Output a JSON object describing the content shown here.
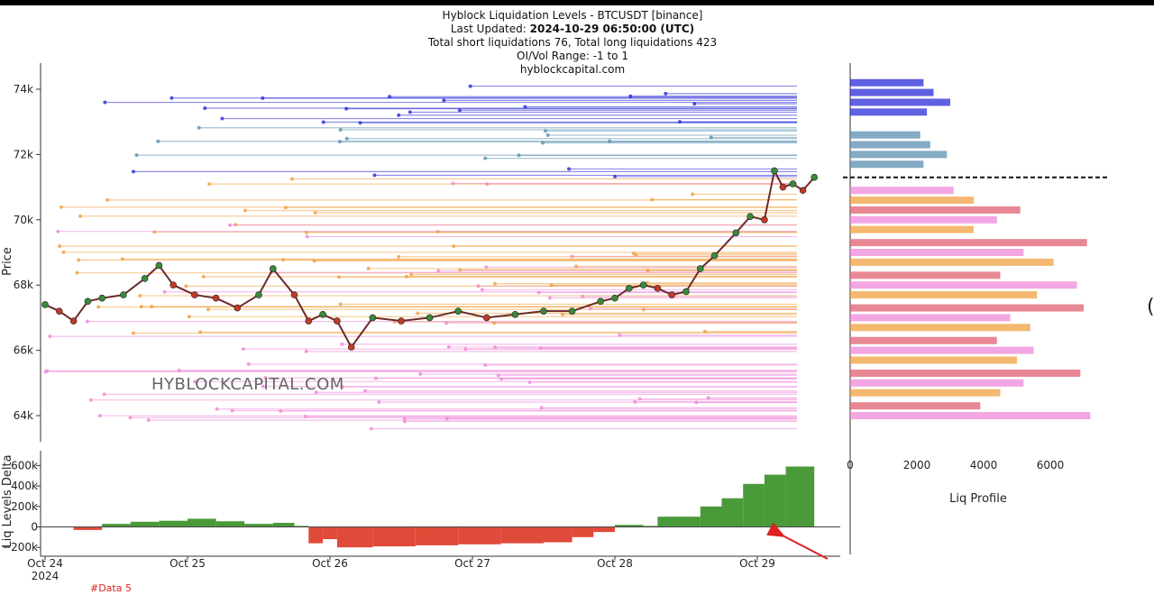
{
  "header": {
    "title": "Hyblock Liquidation Levels - BTCUSDT [binance]",
    "updated_label": "Last Updated:",
    "updated_value": "2024-10-29 06:50:00 (UTC)",
    "totals": "Total short liquidations 76, Total long liquidations 423",
    "range": "OI/Vol Range: -1 to 1",
    "site": "hyblockcapital.com"
  },
  "watermark": "HYBLOCKCAPITAL.COM",
  "footnote": "#Data 5",
  "edge_glyph": "(",
  "colors": {
    "short_liq": "#2b2bd9",
    "short_liq_light": "#5a8fb0",
    "long_liq_orange": "#f0a040",
    "long_liq_pink": "#ee88d8",
    "delta_pos": "#4a9a3a",
    "delta_neg": "#e04a38",
    "current_price_line": "#111111",
    "annotation_arrow": "#e02020"
  },
  "chart_data": [
    {
      "type": "line",
      "name": "price-panel",
      "ylabel": "Price",
      "ylim": [
        63200,
        74800
      ],
      "yticks": [
        64000,
        66000,
        68000,
        70000,
        72000,
        74000
      ],
      "ytick_labels": [
        "64k",
        "66k",
        "68k",
        "70k",
        "72k",
        "74k"
      ],
      "x_domain": [
        0,
        5.4
      ],
      "series": [
        {
          "name": "BTCUSDT price",
          "x": [
            0.0,
            0.1,
            0.2,
            0.3,
            0.4,
            0.55,
            0.7,
            0.8,
            0.9,
            1.05,
            1.2,
            1.35,
            1.5,
            1.6,
            1.75,
            1.85,
            1.95,
            2.05,
            2.15,
            2.3,
            2.5,
            2.7,
            2.9,
            3.1,
            3.3,
            3.5,
            3.7,
            3.9,
            4.0,
            4.1,
            4.2,
            4.3,
            4.4,
            4.5,
            4.6,
            4.7,
            4.85,
            4.95,
            5.05,
            5.12,
            5.18,
            5.25,
            5.32,
            5.4
          ],
          "values": [
            67400,
            67200,
            66900,
            67500,
            67600,
            67700,
            68200,
            68600,
            68000,
            67700,
            67600,
            67300,
            67700,
            68500,
            67700,
            66900,
            67100,
            66900,
            66100,
            67000,
            66900,
            67000,
            67200,
            67000,
            67100,
            67200,
            67200,
            67500,
            67600,
            67900,
            68000,
            67900,
            67700,
            67800,
            68500,
            68900,
            69600,
            70100,
            70000,
            71500,
            71000,
            71100,
            70900,
            71300
          ]
        }
      ],
      "current_price": 71300
    },
    {
      "type": "bar",
      "name": "liq-levels-delta",
      "ylabel": "Liq Levels Delta",
      "ylim": [
        -260000,
        700000
      ],
      "yticks": [
        -200000,
        0,
        200000,
        400000,
        600000
      ],
      "ytick_labels": [
        "−200k",
        "0",
        "200k",
        "400k",
        "600k"
      ],
      "xticks": [
        0,
        1,
        2,
        3,
        4,
        5
      ],
      "xtick_labels": [
        "Oct 24",
        "Oct 25",
        "Oct 26",
        "Oct 27",
        "Oct 28",
        "Oct 29"
      ],
      "x_year_label": "2024",
      "x": [
        0.0,
        0.2,
        0.4,
        0.6,
        0.8,
        1.0,
        1.2,
        1.4,
        1.6,
        1.75,
        1.85,
        1.95,
        2.05,
        2.3,
        2.6,
        2.9,
        3.2,
        3.5,
        3.7,
        3.85,
        4.0,
        4.2,
        4.3,
        4.6,
        4.75,
        4.9,
        5.05,
        5.2,
        5.4
      ],
      "values": [
        5000,
        -30000,
        30000,
        50000,
        60000,
        80000,
        55000,
        30000,
        40000,
        10000,
        -160000,
        -120000,
        -200000,
        -190000,
        -180000,
        -170000,
        -160000,
        -150000,
        -100000,
        -50000,
        20000,
        10000,
        100000,
        200000,
        280000,
        420000,
        510000,
        590000,
        590000
      ]
    },
    {
      "type": "bar",
      "name": "liq-profile",
      "xlabel": "Liq Profile",
      "xlim": [
        0,
        7800
      ],
      "xticks": [
        0,
        2000,
        4000,
        6000
      ],
      "xtick_labels": [
        "0",
        "2000",
        "4000",
        "6000"
      ],
      "categories": [
        74200,
        73900,
        73600,
        73300,
        72600,
        72300,
        72000,
        71700,
        70900,
        70600,
        70300,
        70000,
        69700,
        69300,
        69000,
        68700,
        68300,
        68000,
        67700,
        67300,
        67000,
        66700,
        66300,
        66000,
        65700,
        65300,
        65000,
        64700,
        64300,
        64000
      ],
      "values": [
        2200,
        2500,
        3000,
        2300,
        2100,
        2400,
        2900,
        2200,
        3100,
        3700,
        5100,
        4400,
        3700,
        7100,
        5200,
        6100,
        4500,
        6800,
        5600,
        7000,
        4800,
        5400,
        4400,
        5500,
        5000,
        6900,
        5200,
        4500,
        3900,
        7200
      ]
    }
  ]
}
